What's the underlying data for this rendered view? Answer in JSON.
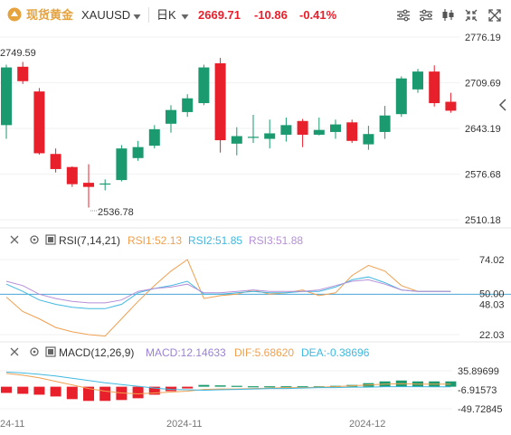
{
  "header": {
    "symbol_name": "现货黄金",
    "symbol_code": "XAUUSD",
    "interval": "日K",
    "price": "2669.71",
    "change": "-10.86",
    "change_pct": "-0.41%"
  },
  "colors": {
    "up": "#1a9a6e",
    "down": "#e8202c",
    "accent": "#e6a23c",
    "rsi1": "#f0a050",
    "rsi2": "#40b8e0",
    "rsi3": "#b58fd8",
    "macd": "#9b82d6",
    "dif": "#f0a050",
    "dea": "#40b8e0"
  },
  "chart_data": [
    {
      "type": "candlestick",
      "price_axis": {
        "min": 2510.18,
        "max": 2776.19,
        "ticks": [
          "2776.19",
          "2709.69",
          "2643.19",
          "2576.68",
          "2510.18"
        ]
      },
      "annotations": {
        "high": "2749.59",
        "low": "2536.78"
      },
      "x_labels": [
        "24-11",
        "2024-11",
        "2024-12"
      ],
      "candles": [
        {
          "o": 2648,
          "c": 2732,
          "h": 2736,
          "l": 2628
        },
        {
          "o": 2733,
          "c": 2712,
          "h": 2740,
          "l": 2708
        },
        {
          "o": 2697,
          "c": 2607,
          "h": 2702,
          "l": 2605
        },
        {
          "o": 2606,
          "c": 2584,
          "h": 2614,
          "l": 2579
        },
        {
          "o": 2587,
          "c": 2562,
          "h": 2588,
          "l": 2558
        },
        {
          "o": 2564,
          "c": 2558,
          "h": 2591,
          "l": 2528
        },
        {
          "o": 2562,
          "c": 2563,
          "h": 2569,
          "l": 2553
        },
        {
          "o": 2568,
          "c": 2614,
          "h": 2619,
          "l": 2566
        },
        {
          "o": 2600,
          "c": 2616,
          "h": 2625,
          "l": 2596
        },
        {
          "o": 2618,
          "c": 2642,
          "h": 2648,
          "l": 2614
        },
        {
          "o": 2650,
          "c": 2670,
          "h": 2677,
          "l": 2637
        },
        {
          "o": 2667,
          "c": 2687,
          "h": 2693,
          "l": 2660
        },
        {
          "o": 2680,
          "c": 2732,
          "h": 2736,
          "l": 2677
        },
        {
          "o": 2738,
          "c": 2626,
          "h": 2746,
          "l": 2608
        },
        {
          "o": 2621,
          "c": 2632,
          "h": 2645,
          "l": 2604
        },
        {
          "o": 2630,
          "c": 2631,
          "h": 2663,
          "l": 2622
        },
        {
          "o": 2628,
          "c": 2636,
          "h": 2656,
          "l": 2614
        },
        {
          "o": 2634,
          "c": 2648,
          "h": 2659,
          "l": 2624
        },
        {
          "o": 2654,
          "c": 2634,
          "h": 2657,
          "l": 2616
        },
        {
          "o": 2634,
          "c": 2641,
          "h": 2659,
          "l": 2633
        },
        {
          "o": 2638,
          "c": 2649,
          "h": 2656,
          "l": 2628
        },
        {
          "o": 2652,
          "c": 2625,
          "h": 2656,
          "l": 2622
        },
        {
          "o": 2620,
          "c": 2635,
          "h": 2647,
          "l": 2612
        },
        {
          "o": 2638,
          "c": 2662,
          "h": 2676,
          "l": 2628
        },
        {
          "o": 2664,
          "c": 2716,
          "h": 2719,
          "l": 2660
        },
        {
          "o": 2700,
          "c": 2726,
          "h": 2730,
          "l": 2695
        },
        {
          "o": 2726,
          "c": 2680,
          "h": 2735,
          "l": 2675
        },
        {
          "o": 2682,
          "c": 2669,
          "h": 2695,
          "l": 2666
        }
      ]
    },
    {
      "type": "line",
      "legend": {
        "title": "RSI(7,14,21)",
        "rsi1": "RSI1:52.13",
        "rsi2": "RSI2:51.85",
        "rsi3": "RSI3:51.88"
      },
      "axis": {
        "min": 22.03,
        "max": 74.02,
        "ticks": [
          "74.02",
          "50.00",
          "48.03",
          "22.03"
        ]
      },
      "reference_line": 50,
      "series": [
        {
          "name": "RSI1",
          "values": [
            48,
            38,
            33,
            27,
            24,
            22,
            21,
            33,
            45,
            56,
            66,
            74,
            47,
            49,
            50,
            53,
            50,
            51,
            53,
            49,
            51,
            63,
            70,
            66,
            56,
            52,
            52,
            52
          ]
        },
        {
          "name": "RSI2",
          "values": [
            57,
            52,
            46,
            43,
            41,
            40,
            40,
            43,
            51,
            54,
            56,
            59,
            50,
            50,
            51,
            52,
            51,
            51,
            52,
            52,
            55,
            60,
            62,
            58,
            53,
            52,
            52,
            52
          ]
        },
        {
          "name": "RSI3",
          "values": [
            59,
            56,
            50,
            47,
            45,
            44,
            44,
            46,
            52,
            54,
            55,
            57,
            51,
            51,
            52,
            53,
            52,
            52,
            52,
            53,
            56,
            59,
            60,
            57,
            53,
            52,
            52,
            52
          ]
        }
      ]
    },
    {
      "type": "bar",
      "legend": {
        "title": "MACD(12,26,9)",
        "macd": "MACD:12.14633",
        "dif": "DIF:5.68620",
        "dea": "DEA:-0.38696"
      },
      "axis": {
        "min": -49.72845,
        "max": 35.89699,
        "ticks": [
          "35.89699",
          "-6.91573",
          "-49.72845"
        ]
      },
      "histogram": [
        -14,
        -16,
        -18,
        -22,
        -28,
        -32,
        -32,
        -30,
        -26,
        -18,
        -10,
        -4,
        4,
        3,
        2,
        1,
        1,
        1,
        1,
        1,
        2,
        4,
        8,
        12,
        14,
        12,
        12,
        12
      ],
      "series": [
        {
          "name": "DIF",
          "values": [
            30,
            26,
            20,
            12,
            4,
            -4,
            -10,
            -14,
            -16,
            -14,
            -12,
            -10,
            -6,
            -5,
            -5,
            -4,
            -3,
            -2,
            -2,
            -1,
            0,
            2,
            4,
            6,
            7,
            6,
            6,
            5.7
          ]
        },
        {
          "name": "DEA",
          "values": [
            33,
            31,
            28,
            24,
            19,
            14,
            9,
            5,
            1,
            -3,
            -6,
            -7,
            -8,
            -7,
            -6,
            -5,
            -4,
            -4,
            -3,
            -2,
            -2,
            -1,
            -1,
            0,
            0,
            0,
            -0.3,
            -0.4
          ]
        }
      ]
    }
  ]
}
